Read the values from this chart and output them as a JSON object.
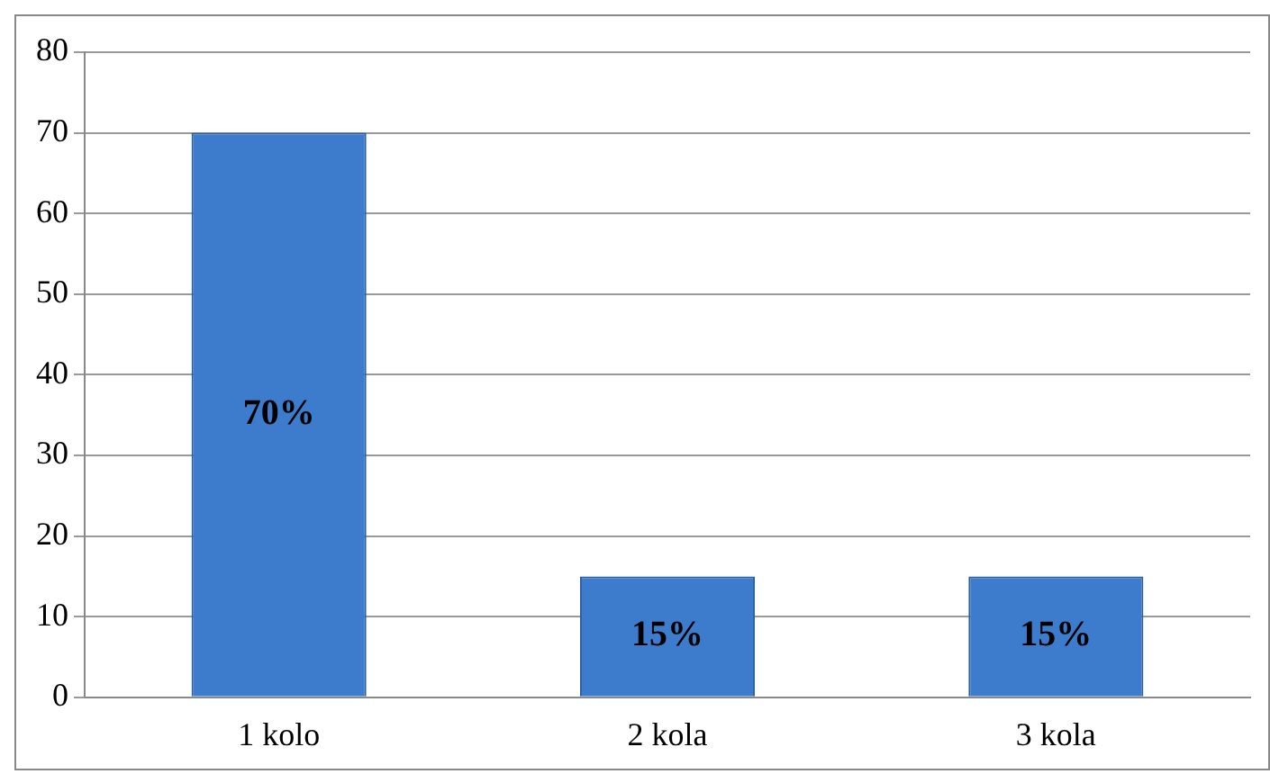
{
  "chart_data": {
    "type": "bar",
    "categories": [
      "1 kolo",
      "2 kola",
      "3 kola"
    ],
    "values": [
      70,
      15,
      15
    ],
    "color": "#3d7ccc",
    "value_labels": [
      "70%",
      "15%",
      "15%"
    ],
    "ylim": [
      0,
      80
    ],
    "yticks": [
      0,
      10,
      20,
      30,
      40,
      50,
      60,
      70,
      80
    ],
    "grid": "y",
    "legend": false
  }
}
